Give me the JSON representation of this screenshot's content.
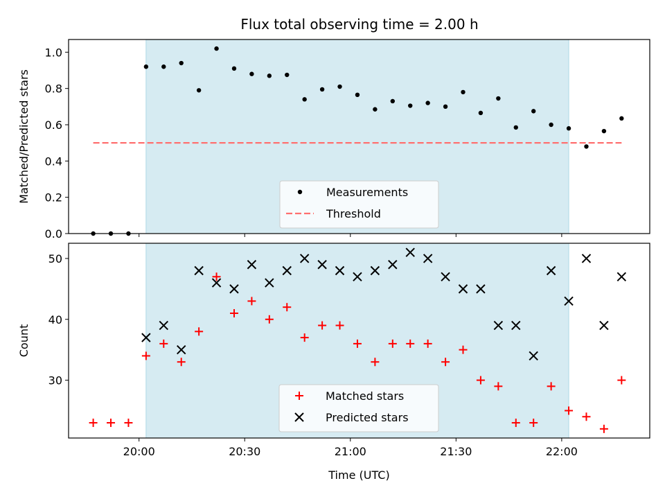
{
  "chart_data": [
    {
      "type": "scatter",
      "title": "Flux total observing time = 2.00 h",
      "ylabel": "Matched/Predicted stars",
      "xlim": [
        "19:40",
        "22:25"
      ],
      "ylim": [
        0,
        1.07
      ],
      "yticks": [
        "0.0",
        "0.2",
        "0.4",
        "0.6",
        "0.8",
        "1.0"
      ],
      "ytick_values": [
        0,
        0.2,
        0.4,
        0.6,
        0.8,
        1.0
      ],
      "xticks": [
        "20:00",
        "20:30",
        "21:00",
        "21:30",
        "22:00"
      ],
      "show_xtick_labels": false,
      "grid": false,
      "legend_position": "bottom-center",
      "shaded_interval": {
        "start": "20:02",
        "end": "22:02",
        "color": "#add8e6"
      },
      "series": [
        {
          "name": "Measurements",
          "marker": "dot",
          "color": "#000000",
          "x": [
            "19:47",
            "19:52",
            "19:57",
            "20:02",
            "20:07",
            "20:12",
            "20:17",
            "20:22",
            "20:27",
            "20:32",
            "20:37",
            "20:42",
            "20:47",
            "20:52",
            "20:57",
            "21:02",
            "21:07",
            "21:12",
            "21:17",
            "21:22",
            "21:27",
            "21:32",
            "21:37",
            "21:42",
            "21:47",
            "21:52",
            "21:57",
            "22:02",
            "22:07",
            "22:12",
            "22:17"
          ],
          "y": [
            0,
            0,
            0,
            0.92,
            0.92,
            0.94,
            0.79,
            1.02,
            0.91,
            0.88,
            0.87,
            0.875,
            0.74,
            0.795,
            0.81,
            0.765,
            0.685,
            0.73,
            0.705,
            0.72,
            0.7,
            0.78,
            0.665,
            0.745,
            0.585,
            0.675,
            0.6,
            0.58,
            0.48,
            0.565,
            0.635
          ]
        },
        {
          "name": "Threshold",
          "marker": "dashed-line",
          "color": "#ff6f6f",
          "x": [
            "19:47",
            "22:17"
          ],
          "y": [
            0.5,
            0.5
          ]
        }
      ]
    },
    {
      "type": "scatter",
      "ylabel": "Count",
      "xlabel": "Time (UTC)",
      "xlim": [
        "19:40",
        "22:25"
      ],
      "ylim": [
        20.5,
        52.5
      ],
      "yticks": [
        "30",
        "40",
        "50"
      ],
      "ytick_values": [
        30,
        40,
        50
      ],
      "xticks": [
        "20:00",
        "20:30",
        "21:00",
        "21:30",
        "22:00"
      ],
      "grid": false,
      "legend_position": "bottom-center",
      "shaded_interval": {
        "start": "20:02",
        "end": "22:02",
        "color": "#add8e6"
      },
      "series": [
        {
          "name": "Matched stars",
          "marker": "plus",
          "color": "#ff0000",
          "x": [
            "19:47",
            "19:52",
            "19:57",
            "20:02",
            "20:07",
            "20:12",
            "20:17",
            "20:22",
            "20:27",
            "20:32",
            "20:37",
            "20:42",
            "20:47",
            "20:52",
            "20:57",
            "21:02",
            "21:07",
            "21:12",
            "21:17",
            "21:22",
            "21:27",
            "21:32",
            "21:37",
            "21:42",
            "21:47",
            "21:52",
            "21:57",
            "22:02",
            "22:07",
            "22:12",
            "22:17"
          ],
          "y": [
            23,
            23,
            23,
            34,
            36,
            33,
            38,
            47,
            41,
            43,
            40,
            42,
            37,
            39,
            39,
            36,
            33,
            36,
            36,
            36,
            33,
            35,
            30,
            29,
            23,
            23,
            29,
            25,
            24,
            22,
            30
          ]
        },
        {
          "name": "Predicted stars",
          "marker": "x",
          "color": "#000000",
          "x": [
            "20:02",
            "20:07",
            "20:12",
            "20:17",
            "20:22",
            "20:27",
            "20:32",
            "20:37",
            "20:42",
            "20:47",
            "20:52",
            "20:57",
            "21:02",
            "21:07",
            "21:12",
            "21:17",
            "21:22",
            "21:27",
            "21:32",
            "21:37",
            "21:42",
            "21:47",
            "21:52",
            "21:57",
            "22:02",
            "22:07",
            "22:12",
            "22:17"
          ],
          "y": [
            37,
            39,
            35,
            48,
            46,
            45,
            49,
            46,
            48,
            50,
            49,
            48,
            47,
            48,
            49,
            51,
            50,
            47,
            45,
            45,
            39,
            39,
            34,
            48,
            43,
            50,
            39,
            47
          ]
        }
      ]
    }
  ]
}
